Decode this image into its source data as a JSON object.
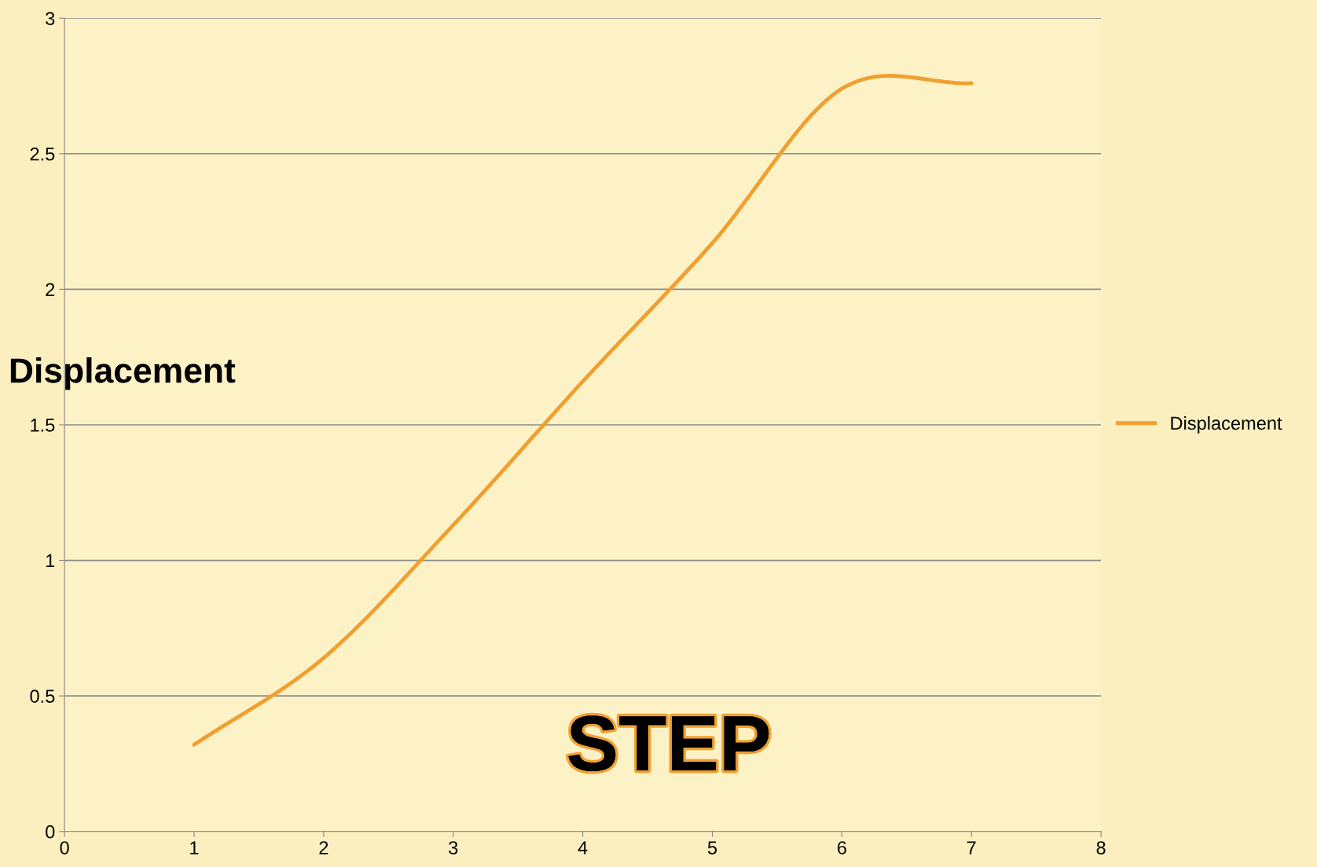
{
  "chart_data": {
    "type": "line",
    "xlabel": "STEP",
    "ylabel": "Displacement",
    "x": [
      1,
      2,
      3,
      4,
      5,
      6,
      7
    ],
    "series": [
      {
        "name": "Displacement",
        "color": "#f0a030",
        "values": [
          0.32,
          0.64,
          1.13,
          1.66,
          2.17,
          2.74,
          2.76
        ]
      }
    ],
    "xlim": [
      0,
      8
    ],
    "xticks": [
      0,
      1,
      2,
      3,
      4,
      5,
      6,
      7,
      8
    ],
    "ylim": [
      0,
      3
    ],
    "yticks": [
      0,
      0.5,
      1,
      1.5,
      2,
      2.5,
      3
    ],
    "grid": "y",
    "legend": "right",
    "marker": "none",
    "line_style": "solid"
  }
}
